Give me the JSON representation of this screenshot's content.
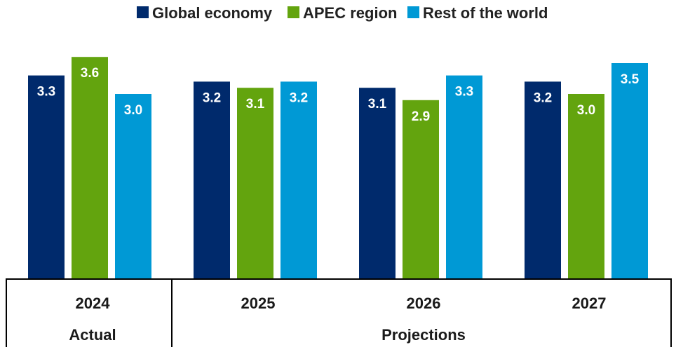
{
  "chart_data": {
    "type": "bar",
    "title": "",
    "xlabel": "",
    "ylabel": "",
    "categories": [
      "2024",
      "2025",
      "2026",
      "2027"
    ],
    "groups": [
      {
        "label": "Actual",
        "categories": [
          "2024"
        ]
      },
      {
        "label": "Projections",
        "categories": [
          "2025",
          "2026",
          "2027"
        ]
      }
    ],
    "series": [
      {
        "name": "Global economy",
        "color": "#002A6C",
        "values": [
          3.3,
          3.2,
          3.1,
          3.2
        ]
      },
      {
        "name": "APEC region",
        "color": "#63A40E",
        "values": [
          3.6,
          3.1,
          2.9,
          3.0
        ]
      },
      {
        "name": "Rest of the world",
        "color": "#0099D5",
        "values": [
          3.0,
          3.2,
          3.3,
          3.5
        ]
      }
    ],
    "value_format": "0.0",
    "ylim": [
      0,
      4
    ],
    "grid": false,
    "legend_position": "top"
  }
}
